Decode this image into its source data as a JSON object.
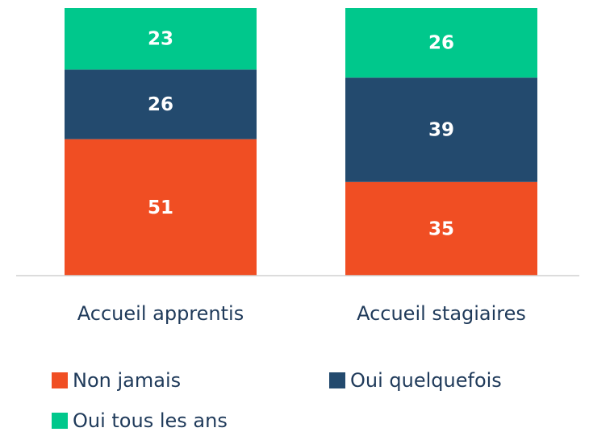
{
  "chart_data": {
    "type": "stacked_bar",
    "categories": [
      "Accueil apprentis",
      "Accueil stagiaires"
    ],
    "series": [
      {
        "name": "Non jamais",
        "color": "#f04e23",
        "values": [
          51,
          35
        ]
      },
      {
        "name": "Oui quelquefois",
        "color": "#234a6e",
        "values": [
          26,
          39
        ]
      },
      {
        "name": "Oui tous les ans",
        "color": "#00c88c",
        "values": [
          23,
          26
        ]
      }
    ]
  }
}
